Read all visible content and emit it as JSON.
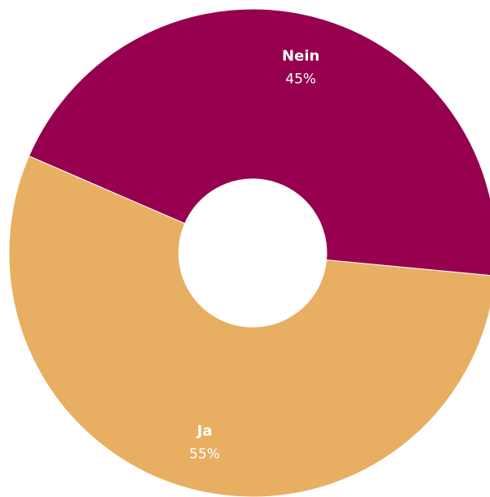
{
  "chart_data": {
    "type": "pie",
    "donut": true,
    "title": "",
    "legend": "none",
    "slices": [
      {
        "label": "Nein",
        "value": 45,
        "value_label": "45%",
        "color": "#96004f"
      },
      {
        "label": "Ja",
        "value": 55,
        "value_label": "55%",
        "color": "#e8ae62"
      }
    ]
  }
}
